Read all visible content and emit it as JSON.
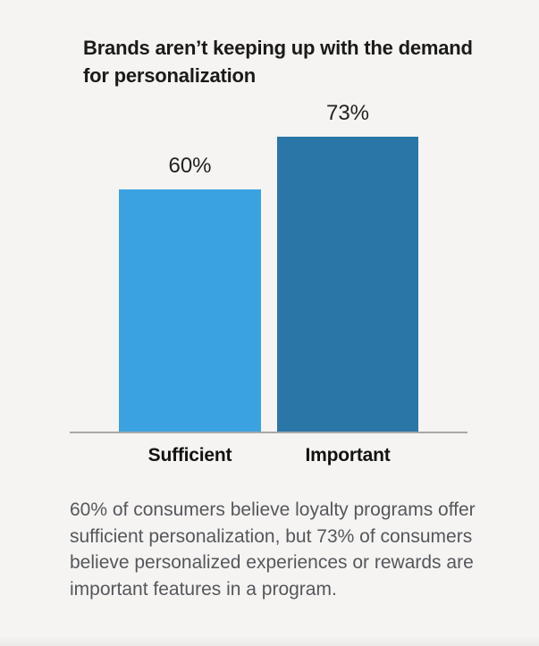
{
  "chart_data": {
    "type": "bar",
    "title": "Brands aren’t keeping up with the demand for personalization",
    "title_lines": [
      "Brands aren’t keeping up with the demand",
      "for personalization"
    ],
    "categories": [
      "Sufficient",
      "Important"
    ],
    "values": [
      60,
      73
    ],
    "value_labels": [
      "60%",
      "73%"
    ],
    "unit": "%",
    "ylim": [
      0,
      100
    ],
    "bar_colors": [
      "#3ba2e2",
      "#2a76a7"
    ],
    "axis_color": "#a8a8a8",
    "grid": false,
    "legend": "none"
  },
  "caption": {
    "text": "60% of consumers believe loyalty programs offer sufficient personalization, but 73% of consumers believe personalized experiences or rewards are important features in a program.",
    "lines": [
      "60% of consumers believe loyalty programs offer",
      "sufficient personalization, but 73% of consumers",
      "believe personalized experiences or rewards are",
      "important features in a program."
    ]
  },
  "colors": {
    "background": "#f5f4f2",
    "title_text": "#1a1a1a",
    "value_label_text": "#222222",
    "category_label_text": "#121212",
    "caption_text": "#55575c"
  }
}
